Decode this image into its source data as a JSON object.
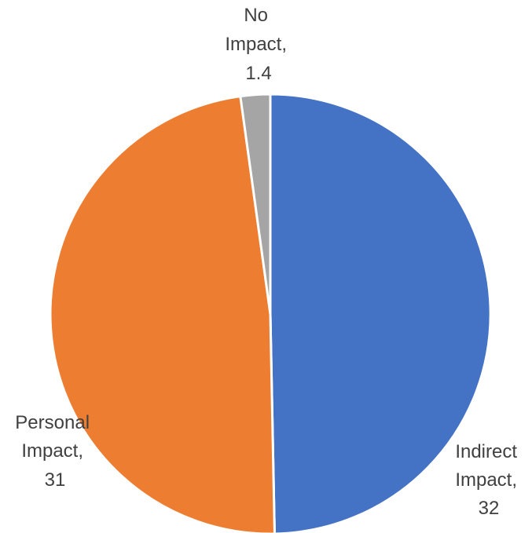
{
  "chart_data": {
    "type": "pie",
    "title": "",
    "slices": [
      {
        "category": "Indirect",
        "label_line1": "Indirect",
        "label_line2": "Impact,",
        "value": 32,
        "value_text": "32",
        "color": "#4472C4"
      },
      {
        "category": "Personal",
        "label_line1": "Personal",
        "label_line2": "Impact,",
        "value": 31,
        "value_text": "31",
        "color": "#ED7D31"
      },
      {
        "category": "No",
        "label_line1": "No",
        "label_line2": "Impact,",
        "value": 1.4,
        "value_text": "1.4",
        "color": "#A5A5A5"
      }
    ],
    "start_angle_deg": 0,
    "direction": "clockwise",
    "legend": "none",
    "label_position": "outside"
  }
}
